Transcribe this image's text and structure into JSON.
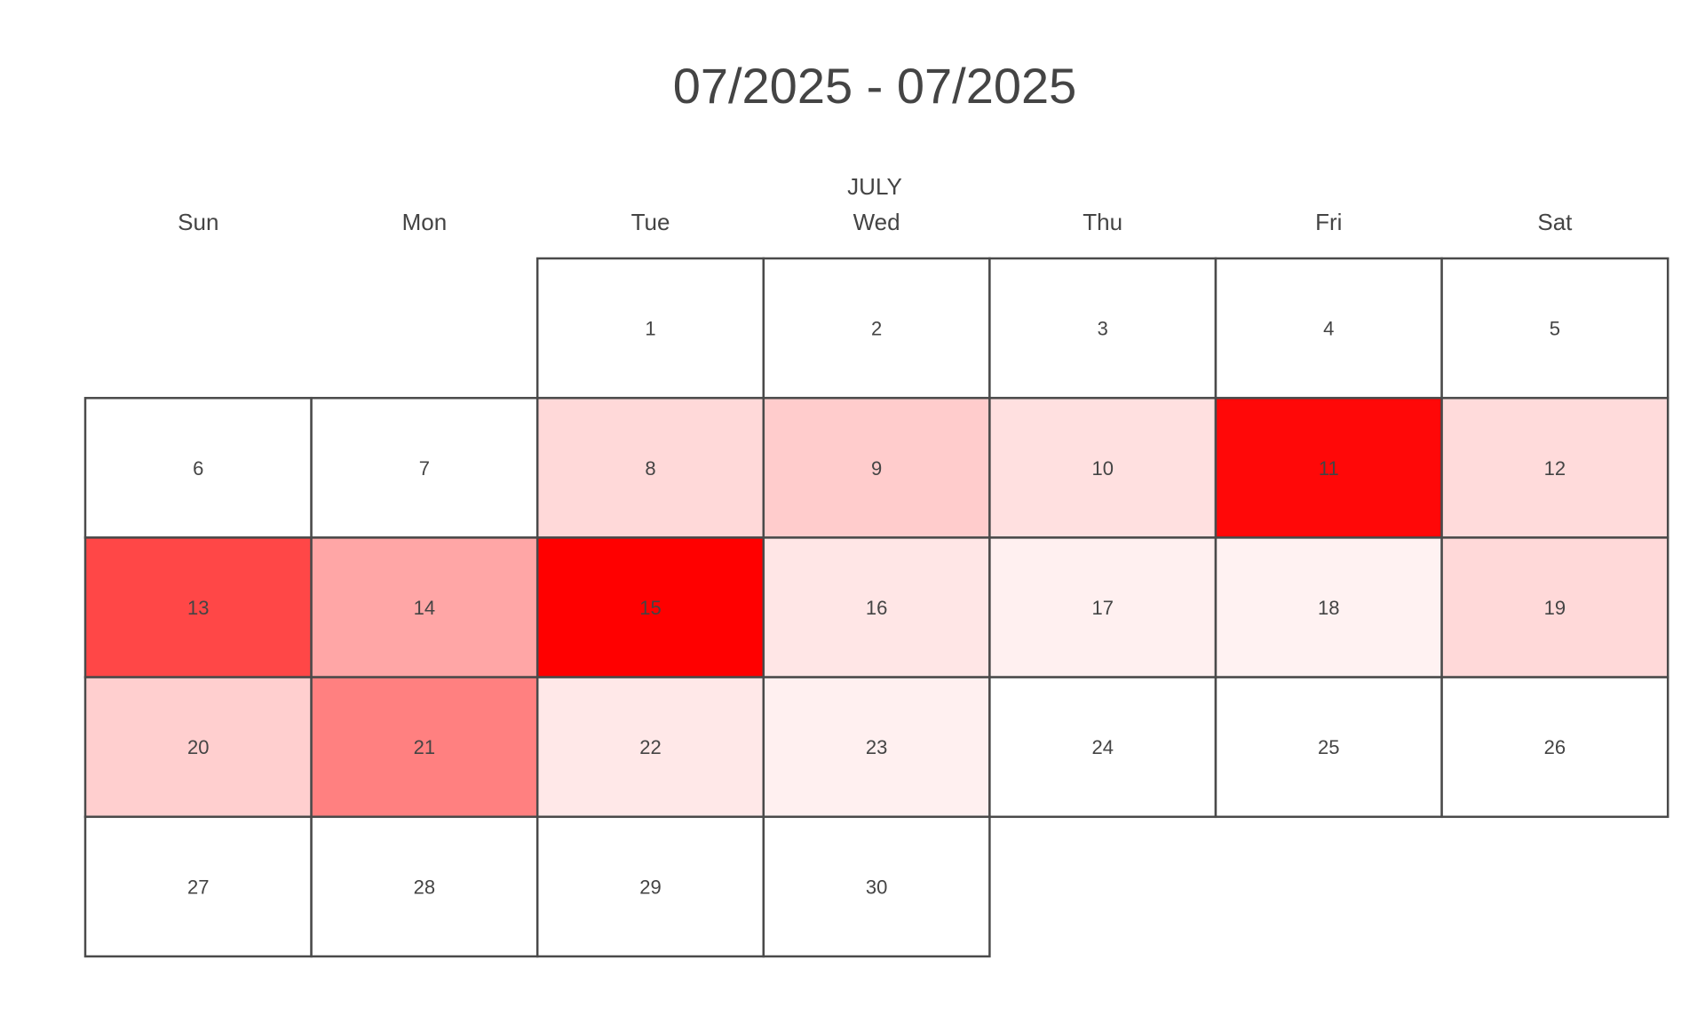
{
  "chart_data": {
    "type": "heatmap",
    "title": "07/2025 - 07/2025",
    "month_label": "JULY",
    "weekdays": [
      "Sun",
      "Mon",
      "Tue",
      "Wed",
      "Thu",
      "Fri",
      "Sat"
    ],
    "year": 2025,
    "month": 7,
    "first_weekday_index": 2,
    "days": [
      1,
      2,
      3,
      4,
      5,
      6,
      7,
      8,
      9,
      10,
      11,
      12,
      13,
      14,
      15,
      16,
      17,
      18,
      19,
      20,
      21,
      22,
      23,
      24,
      25,
      26,
      27,
      28,
      29,
      30
    ],
    "values": [
      0,
      0,
      0,
      0,
      0,
      0,
      0,
      0.15,
      0.2,
      0.12,
      0.97,
      0.14,
      0.72,
      0.35,
      1.0,
      0.1,
      0.06,
      0.05,
      0.15,
      0.19,
      0.5,
      0.09,
      0.06,
      0,
      0,
      0,
      0,
      0,
      0,
      0
    ],
    "color_scale": {
      "low": "#ffffff",
      "high": "#ff0000"
    },
    "grid": true
  }
}
